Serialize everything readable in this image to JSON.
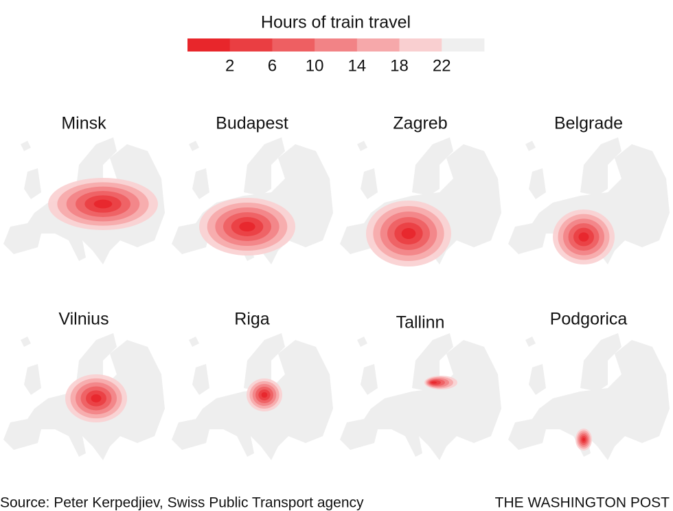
{
  "legend": {
    "title": "Hours of train travel",
    "ticks": [
      2,
      6,
      10,
      14,
      18,
      22
    ],
    "colors": [
      "#e8262b",
      "#ea3e42",
      "#ee5f62",
      "#f28386",
      "#f6a8aa",
      "#f9cfd0",
      "#efefef"
    ]
  },
  "maps": [
    {
      "city": "Minsk"
    },
    {
      "city": "Budapest"
    },
    {
      "city": "Zagreb"
    },
    {
      "city": "Belgrade"
    },
    {
      "city": "Vilnius"
    },
    {
      "city": "Riga"
    },
    {
      "city": "Tallinn"
    },
    {
      "city": "Podgorica"
    }
  ],
  "source": "Source: Peter Kerpedjiev, Swiss Public Transport agency",
  "credit": "THE WASHINGTON POST"
}
